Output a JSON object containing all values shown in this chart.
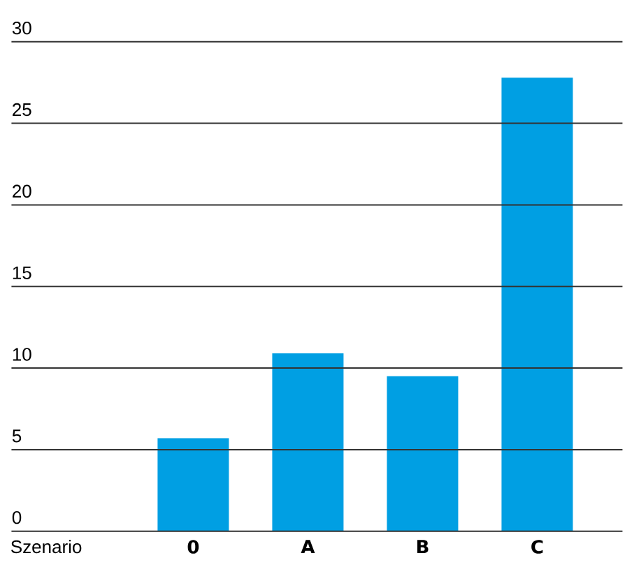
{
  "chart_data": {
    "type": "bar",
    "xlabel": "Szenario",
    "categories": [
      "0",
      "A",
      "B",
      "C"
    ],
    "values": [
      5.7,
      10.9,
      9.5,
      27.8
    ],
    "color": "#009fe3",
    "ylim": [
      0,
      30
    ],
    "yticks": [
      0,
      5,
      10,
      15,
      20,
      25,
      30
    ],
    "grid": "y"
  }
}
